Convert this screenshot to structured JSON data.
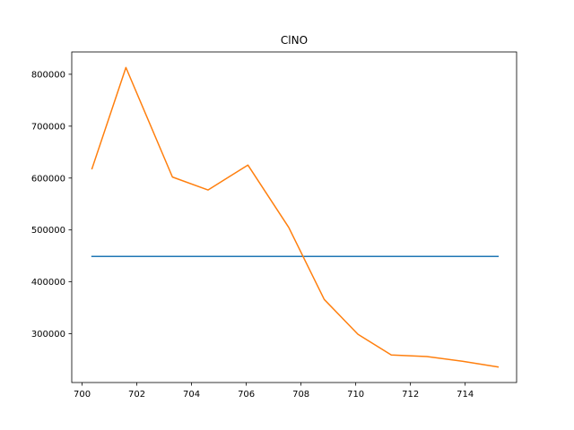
{
  "chart_data": {
    "type": "line",
    "title": "ClNO",
    "xlabel": "",
    "ylabel": "",
    "xlim": [
      699.62,
      715.88
    ],
    "ylim": [
      206000,
      843000
    ],
    "xticks": [
      700,
      702,
      704,
      706,
      708,
      710,
      712,
      714
    ],
    "yticks": [
      300000,
      400000,
      500000,
      600000,
      700000,
      800000
    ],
    "grid": false,
    "series": [
      {
        "color": "#1f77b4",
        "x": [
          700.36,
          715.2
        ],
        "y": [
          449000,
          449000
        ]
      },
      {
        "color": "#ff7f0e",
        "x": [
          700.36,
          701.6,
          703.3,
          704.6,
          706.06,
          707.55,
          708.85,
          710.08,
          711.3,
          712.6,
          713.9,
          715.2
        ],
        "y": [
          618000,
          813000,
          602000,
          577000,
          625000,
          505000,
          366000,
          299000,
          259000,
          256000,
          247000,
          236000
        ]
      }
    ]
  }
}
